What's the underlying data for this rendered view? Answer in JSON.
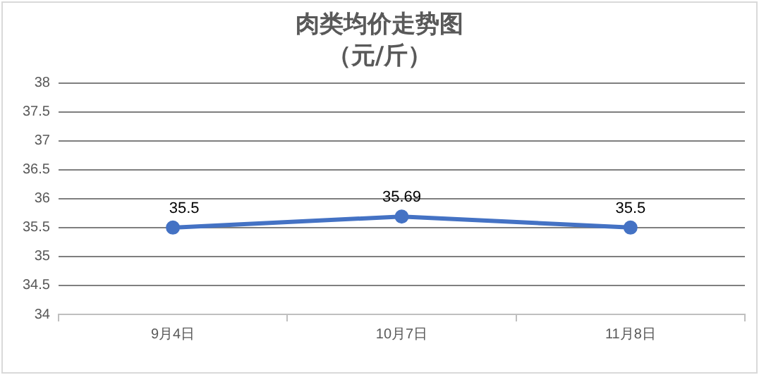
{
  "chart_data": {
    "type": "line",
    "title": "肉类均价走势图",
    "subtitle": "（元/斤）",
    "categories": [
      "9月4日",
      "10月7日",
      "11月8日"
    ],
    "series": [
      {
        "color": "#4472c4",
        "values": [
          35.5,
          35.69,
          35.5
        ]
      }
    ],
    "ylim": [
      34,
      38
    ],
    "yticks": [
      34,
      34.5,
      35,
      35.5,
      36,
      36.5,
      37,
      37.5,
      38
    ],
    "grid": "y",
    "marker": "circle",
    "line_style": "solid",
    "data_labels": true,
    "legend": false
  }
}
